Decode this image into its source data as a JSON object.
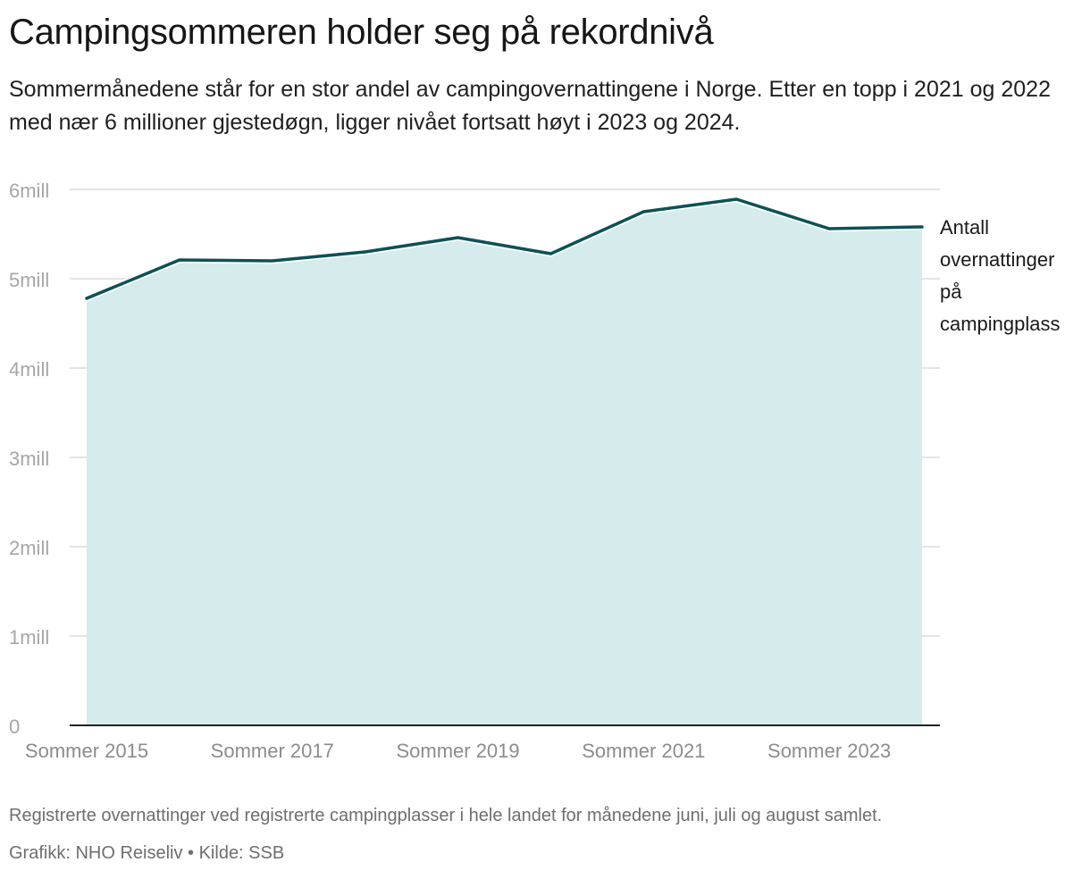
{
  "header": {
    "title": "Campingsommeren holder seg på rekordnivå",
    "subtitle": "Sommermånedene står for en stor andel av campingovernattingene i Norge. Etter en topp i 2021 og 2022 med nær 6 millioner gjestedøgn, ligger nivået fortsatt høyt i 2023 og 2024."
  },
  "footer": {
    "note": "Registrerte overnattinger ved registrerte campingplasser i hele landet for månedene juni, juli og august samlet.",
    "credit": "Grafikk: NHO Reiseliv • Kilde: SSB"
  },
  "colors": {
    "line": "#0b5257",
    "area": "#d6ebeb",
    "grid": "#dcdcdc",
    "axis": "#222222",
    "tick_text": "#a6a6a6",
    "x_tick_text": "#8c8c8c"
  },
  "chart_data": {
    "type": "area",
    "title": "Campingsommeren holder seg på rekordnivå",
    "x": [
      2015,
      2016,
      2017,
      2018,
      2019,
      2020,
      2021,
      2022,
      2023,
      2024
    ],
    "x_tick_labels": [
      {
        "x": 2015,
        "label": "Sommer 2015"
      },
      {
        "x": 2017,
        "label": "Sommer 2017"
      },
      {
        "x": 2019,
        "label": "Sommer 2019"
      },
      {
        "x": 2021,
        "label": "Sommer 2021"
      },
      {
        "x": 2023,
        "label": "Sommer 2023"
      }
    ],
    "y_ticks": [
      {
        "value": 0,
        "label": "0"
      },
      {
        "value": 1000000,
        "label": "1mill"
      },
      {
        "value": 2000000,
        "label": "2mill"
      },
      {
        "value": 3000000,
        "label": "3mill"
      },
      {
        "value": 4000000,
        "label": "4mill"
      },
      {
        "value": 5000000,
        "label": "5mill"
      },
      {
        "value": 6000000,
        "label": "6mill"
      }
    ],
    "ylim": [
      0,
      6000000
    ],
    "grid": true,
    "series": [
      {
        "name": "Antall overnattinger på campingplass",
        "name_lines": [
          "Antall",
          "overnattinger",
          "på",
          "campingplass"
        ],
        "values": [
          4780000,
          5210000,
          5200000,
          5300000,
          5460000,
          5280000,
          5750000,
          5890000,
          5560000,
          5580000
        ]
      }
    ]
  }
}
